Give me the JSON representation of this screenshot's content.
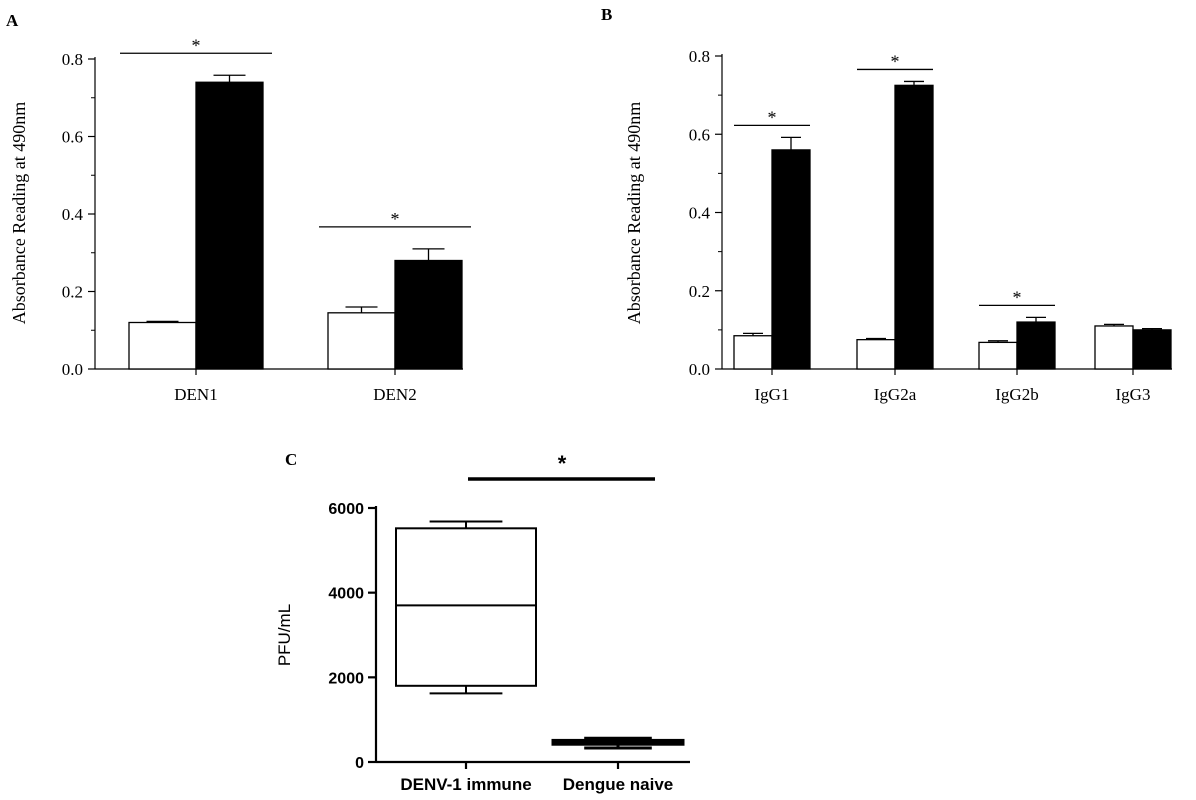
{
  "chart_data": [
    {
      "panel": "A",
      "type": "bar",
      "ylabel": "Absorbance Reading at 490nm",
      "ylim": [
        0,
        0.8
      ],
      "yticks": [
        "0.0",
        "0.2",
        "0.4",
        "0.6",
        "0.8"
      ],
      "categories": [
        "DEN1",
        "DEN2"
      ],
      "series": [
        {
          "fill": "#ffffff",
          "values": [
            0.12,
            0.145
          ],
          "errors": [
            0.003,
            0.015
          ]
        },
        {
          "fill": "#000000",
          "values": [
            0.74,
            0.28
          ],
          "errors": [
            0.018,
            0.03
          ]
        }
      ],
      "significance": [
        "*",
        "*"
      ]
    },
    {
      "panel": "B",
      "type": "bar",
      "ylabel": "Absorbance Reading at 490nm",
      "ylim": [
        0,
        0.8
      ],
      "yticks": [
        "0.0",
        "0.2",
        "0.4",
        "0.6",
        "0.8"
      ],
      "categories": [
        "IgG1",
        "IgG2a",
        "IgG2b",
        "IgG3"
      ],
      "series": [
        {
          "fill": "#ffffff",
          "values": [
            0.085,
            0.075,
            0.068,
            0.11
          ],
          "errors": [
            0.006,
            0.003,
            0.004,
            0.004
          ]
        },
        {
          "fill": "#000000",
          "values": [
            0.56,
            0.725,
            0.12,
            0.1
          ],
          "errors": [
            0.032,
            0.01,
            0.012,
            0.003
          ]
        }
      ],
      "significance": [
        "*",
        "*",
        "*",
        ""
      ]
    },
    {
      "panel": "C",
      "type": "box",
      "ylabel": "PFU/mL",
      "ylim": [
        0,
        6000
      ],
      "yticks": [
        "0",
        "2000",
        "4000",
        "6000"
      ],
      "categories": [
        "DENV-1 immune",
        "Dengue naive"
      ],
      "boxes": [
        {
          "min": 1620,
          "q1": 1800,
          "median": 3700,
          "q3": 5520,
          "max": 5680
        },
        {
          "min": 330,
          "q1": 420,
          "median": 470,
          "q3": 510,
          "max": 560
        }
      ],
      "significance": "*"
    }
  ]
}
